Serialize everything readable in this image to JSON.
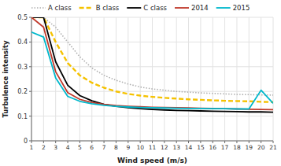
{
  "chart_data": {
    "type": "line",
    "x": [
      1,
      2,
      3,
      4,
      5,
      6,
      7,
      8,
      9,
      10,
      11,
      12,
      13,
      14,
      15,
      16,
      17,
      18,
      19,
      20,
      21
    ],
    "series": [
      {
        "name": "A class",
        "color": "#b0b0b0",
        "line_style": "dotted",
        "values": [
          0.5,
          0.5,
          0.46,
          0.4,
          0.34,
          0.295,
          0.265,
          0.245,
          0.23,
          0.218,
          0.21,
          0.205,
          0.2,
          0.197,
          0.194,
          0.192,
          0.19,
          0.188,
          0.187,
          0.186,
          0.185
        ]
      },
      {
        "name": "B class",
        "color": "#f5c200",
        "line_style": "dashed",
        "values": [
          0.5,
          0.5,
          0.4,
          0.315,
          0.265,
          0.235,
          0.215,
          0.2,
          0.19,
          0.183,
          0.178,
          0.174,
          0.171,
          0.168,
          0.166,
          0.164,
          0.162,
          0.161,
          0.16,
          0.158,
          0.157
        ]
      },
      {
        "name": "C class",
        "color": "#000000",
        "line_style": "solid",
        "values": [
          0.5,
          0.5,
          0.32,
          0.225,
          0.183,
          0.162,
          0.148,
          0.14,
          0.134,
          0.13,
          0.127,
          0.125,
          0.123,
          0.122,
          0.121,
          0.12,
          0.119,
          0.118,
          0.117,
          0.117,
          0.116
        ]
      },
      {
        "name": "2014",
        "color": "#c0392b",
        "line_style": "solid",
        "values": [
          0.5,
          0.46,
          0.28,
          0.195,
          0.168,
          0.155,
          0.148,
          0.143,
          0.14,
          0.138,
          0.136,
          0.135,
          0.134,
          0.133,
          0.132,
          0.131,
          0.13,
          0.129,
          0.128,
          0.127,
          0.126
        ]
      },
      {
        "name": "2015",
        "color": "#00b8cc",
        "line_style": "solid",
        "values": [
          0.44,
          0.42,
          0.255,
          0.18,
          0.16,
          0.15,
          0.144,
          0.14,
          0.137,
          0.135,
          0.134,
          0.133,
          0.132,
          0.131,
          0.131,
          0.13,
          0.13,
          0.129,
          0.129,
          0.205,
          0.152
        ]
      }
    ],
    "x_label": "Wind speed (m/s)",
    "y_label": "Turbulence intensity",
    "xlim": [
      1,
      21
    ],
    "xticks": [
      1,
      2,
      3,
      4,
      5,
      6,
      7,
      8,
      9,
      10,
      11,
      12,
      13,
      14,
      15,
      16,
      17,
      18,
      19,
      20,
      21
    ],
    "ylim": [
      0,
      0.5
    ],
    "yticks": [
      0,
      0.1,
      0.2,
      0.3,
      0.4,
      0.5
    ],
    "grid": true,
    "legend": "top"
  }
}
